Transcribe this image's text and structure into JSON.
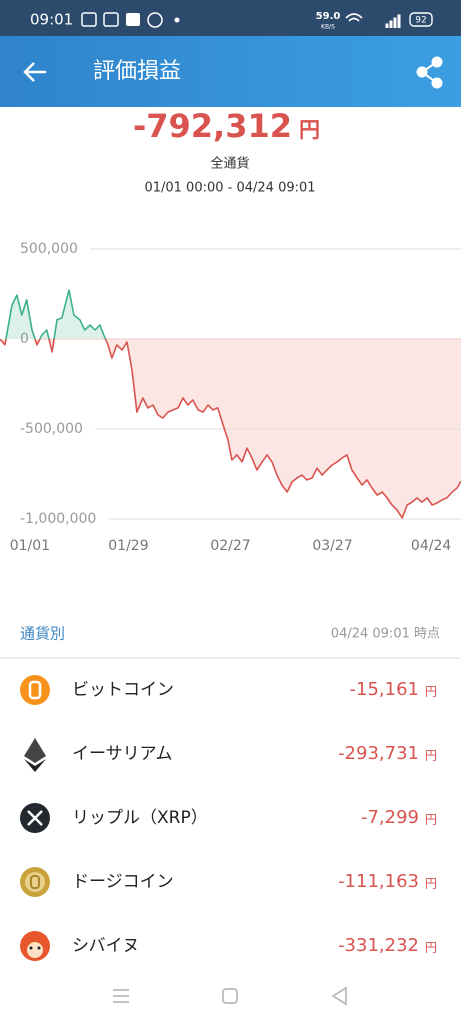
{
  "status_bar": {
    "time": "09:01",
    "speed": "59.0",
    "speed_unit": "KB/S",
    "battery": "92"
  },
  "header": {
    "title": "評価損益"
  },
  "summary": {
    "total": "-792,312",
    "unit": "円",
    "scope": "全通貨",
    "period": "01/01 00:00 - 04/24 09:01"
  },
  "chart_data": {
    "type": "line",
    "x": [
      -8.5,
      -7.1,
      -5.1,
      -3.7,
      -2.3,
      -0.9,
      0.6,
      2.0,
      3.4,
      4.8,
      6.3,
      7.7,
      9.1,
      11.1,
      12.5,
      14.2,
      15.6,
      17.1,
      18.5,
      19.9,
      21.0,
      22.2,
      23.3,
      24.7,
      26.2,
      27.6,
      29.0,
      30.4,
      32.1,
      33.5,
      35.0,
      36.4,
      37.8,
      39.2,
      40.7,
      42.1,
      43.5,
      44.9,
      46.3,
      47.8,
      49.2,
      50.6,
      52.0,
      53.4,
      54.9,
      56.3,
      57.4,
      58.8,
      60.3,
      61.7,
      63.1,
      64.5,
      66.0,
      67.4,
      68.8,
      70.2,
      71.6,
      73.1,
      74.5,
      75.9,
      77.3,
      78.7,
      80.2,
      81.6,
      83.0,
      84.4,
      85.9,
      87.3,
      88.7,
      90.1,
      91.5,
      93.0,
      94.4,
      95.8,
      97.2,
      98.7,
      100.1,
      101.5,
      102.9,
      104.3,
      105.8,
      107.2,
      108.6,
      110.0,
      111.4,
      112.9,
      114.3,
      115.7,
      117.1,
      118.5,
      120.0,
      121.4,
      122.5
    ],
    "values": [
      0,
      -33000,
      189000,
      244000,
      133000,
      217000,
      50000,
      -33000,
      22000,
      50000,
      -72000,
      106000,
      117000,
      272000,
      133000,
      106000,
      50000,
      78000,
      50000,
      78000,
      22000,
      -33000,
      -106000,
      -33000,
      -61000,
      -17000,
      -172000,
      -406000,
      -328000,
      -383000,
      -367000,
      -422000,
      -439000,
      -406000,
      -394000,
      -383000,
      -328000,
      -367000,
      -339000,
      -394000,
      -406000,
      -367000,
      -394000,
      -383000,
      -478000,
      -561000,
      -672000,
      -644000,
      -683000,
      -606000,
      -661000,
      -728000,
      -683000,
      -644000,
      -683000,
      -756000,
      -811000,
      -850000,
      -794000,
      -772000,
      -756000,
      -783000,
      -772000,
      -717000,
      -756000,
      -728000,
      -700000,
      -683000,
      -661000,
      -644000,
      -728000,
      -772000,
      -811000,
      -783000,
      -828000,
      -867000,
      -850000,
      -883000,
      -922000,
      -950000,
      -994000,
      -922000,
      -906000,
      -883000,
      -906000,
      -883000,
      -922000,
      -911000,
      -894000,
      -883000,
      -850000,
      -828000,
      -790000
    ],
    "positive_color": "#3cb08a",
    "negative_color": "#d9534f",
    "positive_fill": "#dcf2e9",
    "negative_fill": "#fbe6e4",
    "xlim": [
      -8.5,
      122.5
    ],
    "xticks": [
      {
        "value": 0,
        "label": "01/01"
      },
      {
        "value": 28,
        "label": "01/29"
      },
      {
        "value": 57,
        "label": "02/27"
      },
      {
        "value": 86,
        "label": "03/27"
      },
      {
        "value": 114,
        "label": "04/24"
      }
    ],
    "ylim": [
      -1100000,
      600000
    ],
    "yticks": [
      {
        "value": 500000,
        "label": "500,000"
      },
      0,
      {
        "value": -500000,
        "label": "-500,000"
      },
      {
        "value": -1000000,
        "label": "-1,000,000"
      }
    ],
    "grid": true
  },
  "section": {
    "title": "通貨別",
    "as_of": "04/24 09:01 時点"
  },
  "holdings": [
    {
      "name": "ビットコイン",
      "value": "-15,161",
      "unit": "円"
    },
    {
      "name": "イーサリアム",
      "value": "-293,731",
      "unit": "円"
    },
    {
      "name": "リップル（XRP）",
      "value": "-7,299",
      "unit": "円"
    },
    {
      "name": "ドージコイン",
      "value": "-111,163",
      "unit": "円"
    },
    {
      "name": "シバイヌ",
      "value": "-331,232",
      "unit": "円"
    }
  ]
}
